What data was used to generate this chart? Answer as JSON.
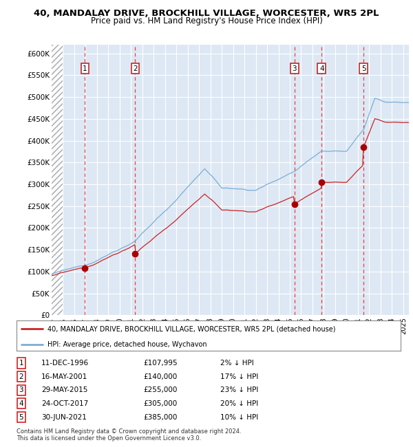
{
  "title": "40, MANDALAY DRIVE, BROCKHILL VILLAGE, WORCESTER, WR5 2PL",
  "subtitle": "Price paid vs. HM Land Registry's House Price Index (HPI)",
  "xlim_start": 1994.0,
  "xlim_end": 2025.5,
  "ylim_min": 0,
  "ylim_max": 620000,
  "yticks": [
    0,
    50000,
    100000,
    150000,
    200000,
    250000,
    300000,
    350000,
    400000,
    450000,
    500000,
    550000,
    600000
  ],
  "ytick_labels": [
    "£0",
    "£50K",
    "£100K",
    "£150K",
    "£200K",
    "£250K",
    "£300K",
    "£350K",
    "£400K",
    "£450K",
    "£500K",
    "£550K",
    "£600K"
  ],
  "sales": [
    {
      "num": 1,
      "year": 1996.94,
      "price": 107995,
      "label": "11-DEC-1996",
      "price_label": "£107,995",
      "pct": "2% ↓ HPI"
    },
    {
      "num": 2,
      "year": 2001.37,
      "price": 140000,
      "label": "16-MAY-2001",
      "price_label": "£140,000",
      "pct": "17% ↓ HPI"
    },
    {
      "num": 3,
      "year": 2015.41,
      "price": 255000,
      "label": "29-MAY-2015",
      "price_label": "£255,000",
      "pct": "23% ↓ HPI"
    },
    {
      "num": 4,
      "year": 2017.81,
      "price": 305000,
      "label": "24-OCT-2017",
      "price_label": "£305,000",
      "pct": "20% ↓ HPI"
    },
    {
      "num": 5,
      "year": 2021.5,
      "price": 385000,
      "label": "30-JUN-2021",
      "price_label": "£385,000",
      "pct": "10% ↓ HPI"
    }
  ],
  "hpi_color": "#7aaed4",
  "price_color": "#cc2222",
  "sale_dot_color": "#aa0000",
  "vline_color": "#dd4444",
  "box_color": "#cc2222",
  "bg_color": "#dde8f4",
  "grid_color": "#ffffff",
  "legend_line1": "40, MANDALAY DRIVE, BROCKHILL VILLAGE, WORCESTER, WR5 2PL (detached house)",
  "legend_line2": "HPI: Average price, detached house, Wychavon",
  "footnote1": "Contains HM Land Registry data © Crown copyright and database right 2024.",
  "footnote2": "This data is licensed under the Open Government Licence v3.0.",
  "hpi_discount": [
    0.02,
    0.17,
    0.23,
    0.2,
    0.1
  ]
}
